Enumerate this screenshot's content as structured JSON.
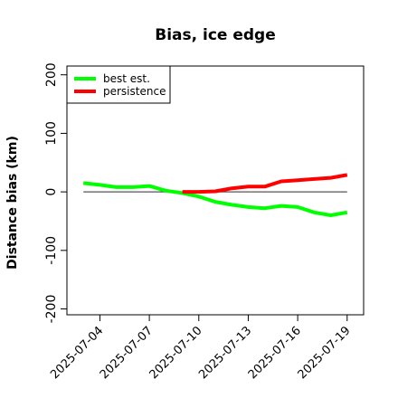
{
  "chart_data": {
    "type": "line",
    "title": "Bias, ice edge",
    "xlabel": "",
    "ylabel": "Distance bias (km)",
    "ylim": [
      -210,
      215
    ],
    "yticks": [
      -200,
      -100,
      0,
      100,
      200
    ],
    "xticks": [
      "2025-07-04",
      "2025-07-07",
      "2025-07-10",
      "2025-07-13",
      "2025-07-16",
      "2025-07-19"
    ],
    "reference_line": 0,
    "grid": false,
    "legend_position": "top-left",
    "series": [
      {
        "name": "best est.",
        "color": "#00ff00",
        "x": [
          "2025-07-03",
          "2025-07-04",
          "2025-07-05",
          "2025-07-06",
          "2025-07-07",
          "2025-07-08",
          "2025-07-09",
          "2025-07-10",
          "2025-07-11",
          "2025-07-12",
          "2025-07-13",
          "2025-07-14",
          "2025-07-15",
          "2025-07-16",
          "2025-07-17",
          "2025-07-18",
          "2025-07-19"
        ],
        "values": [
          15,
          12,
          8,
          8,
          10,
          2,
          -2,
          -8,
          -17,
          -22,
          -26,
          -28,
          -24,
          -26,
          -35,
          -40,
          -35
        ]
      },
      {
        "name": "persistence",
        "color": "#ff0000",
        "x": [
          "2025-07-09",
          "2025-07-10",
          "2025-07-11",
          "2025-07-12",
          "2025-07-13",
          "2025-07-14",
          "2025-07-15",
          "2025-07-16",
          "2025-07-17",
          "2025-07-18",
          "2025-07-19"
        ],
        "values": [
          0,
          0,
          1,
          6,
          9,
          9,
          18,
          20,
          22,
          24,
          29
        ]
      }
    ]
  }
}
